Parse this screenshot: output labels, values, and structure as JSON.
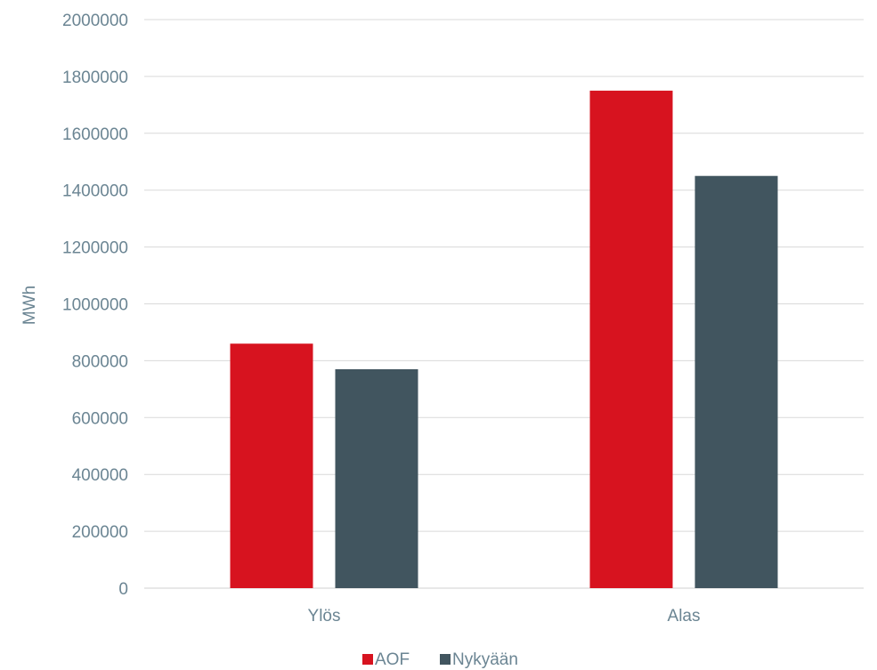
{
  "chart_data": {
    "type": "bar",
    "title": "",
    "xlabel": "",
    "ylabel": "MWh",
    "categories": [
      "Ylös",
      "Alas"
    ],
    "series": [
      {
        "name": "AOF",
        "values": [
          860000,
          1750000
        ],
        "color": "#d7131f"
      },
      {
        "name": "Nykyään",
        "values": [
          770000,
          1450000
        ],
        "color": "#41555f"
      }
    ],
    "ylim": [
      0,
      2000000
    ],
    "yticks": [
      "0",
      "200000",
      "400000",
      "600000",
      "800000",
      "1000000",
      "1200000",
      "1400000",
      "1600000",
      "1800000",
      "2000000"
    ],
    "grid": true,
    "legend_position": "bottom",
    "text_color": "#6b8593",
    "grid_color": "#d9d9d9"
  }
}
